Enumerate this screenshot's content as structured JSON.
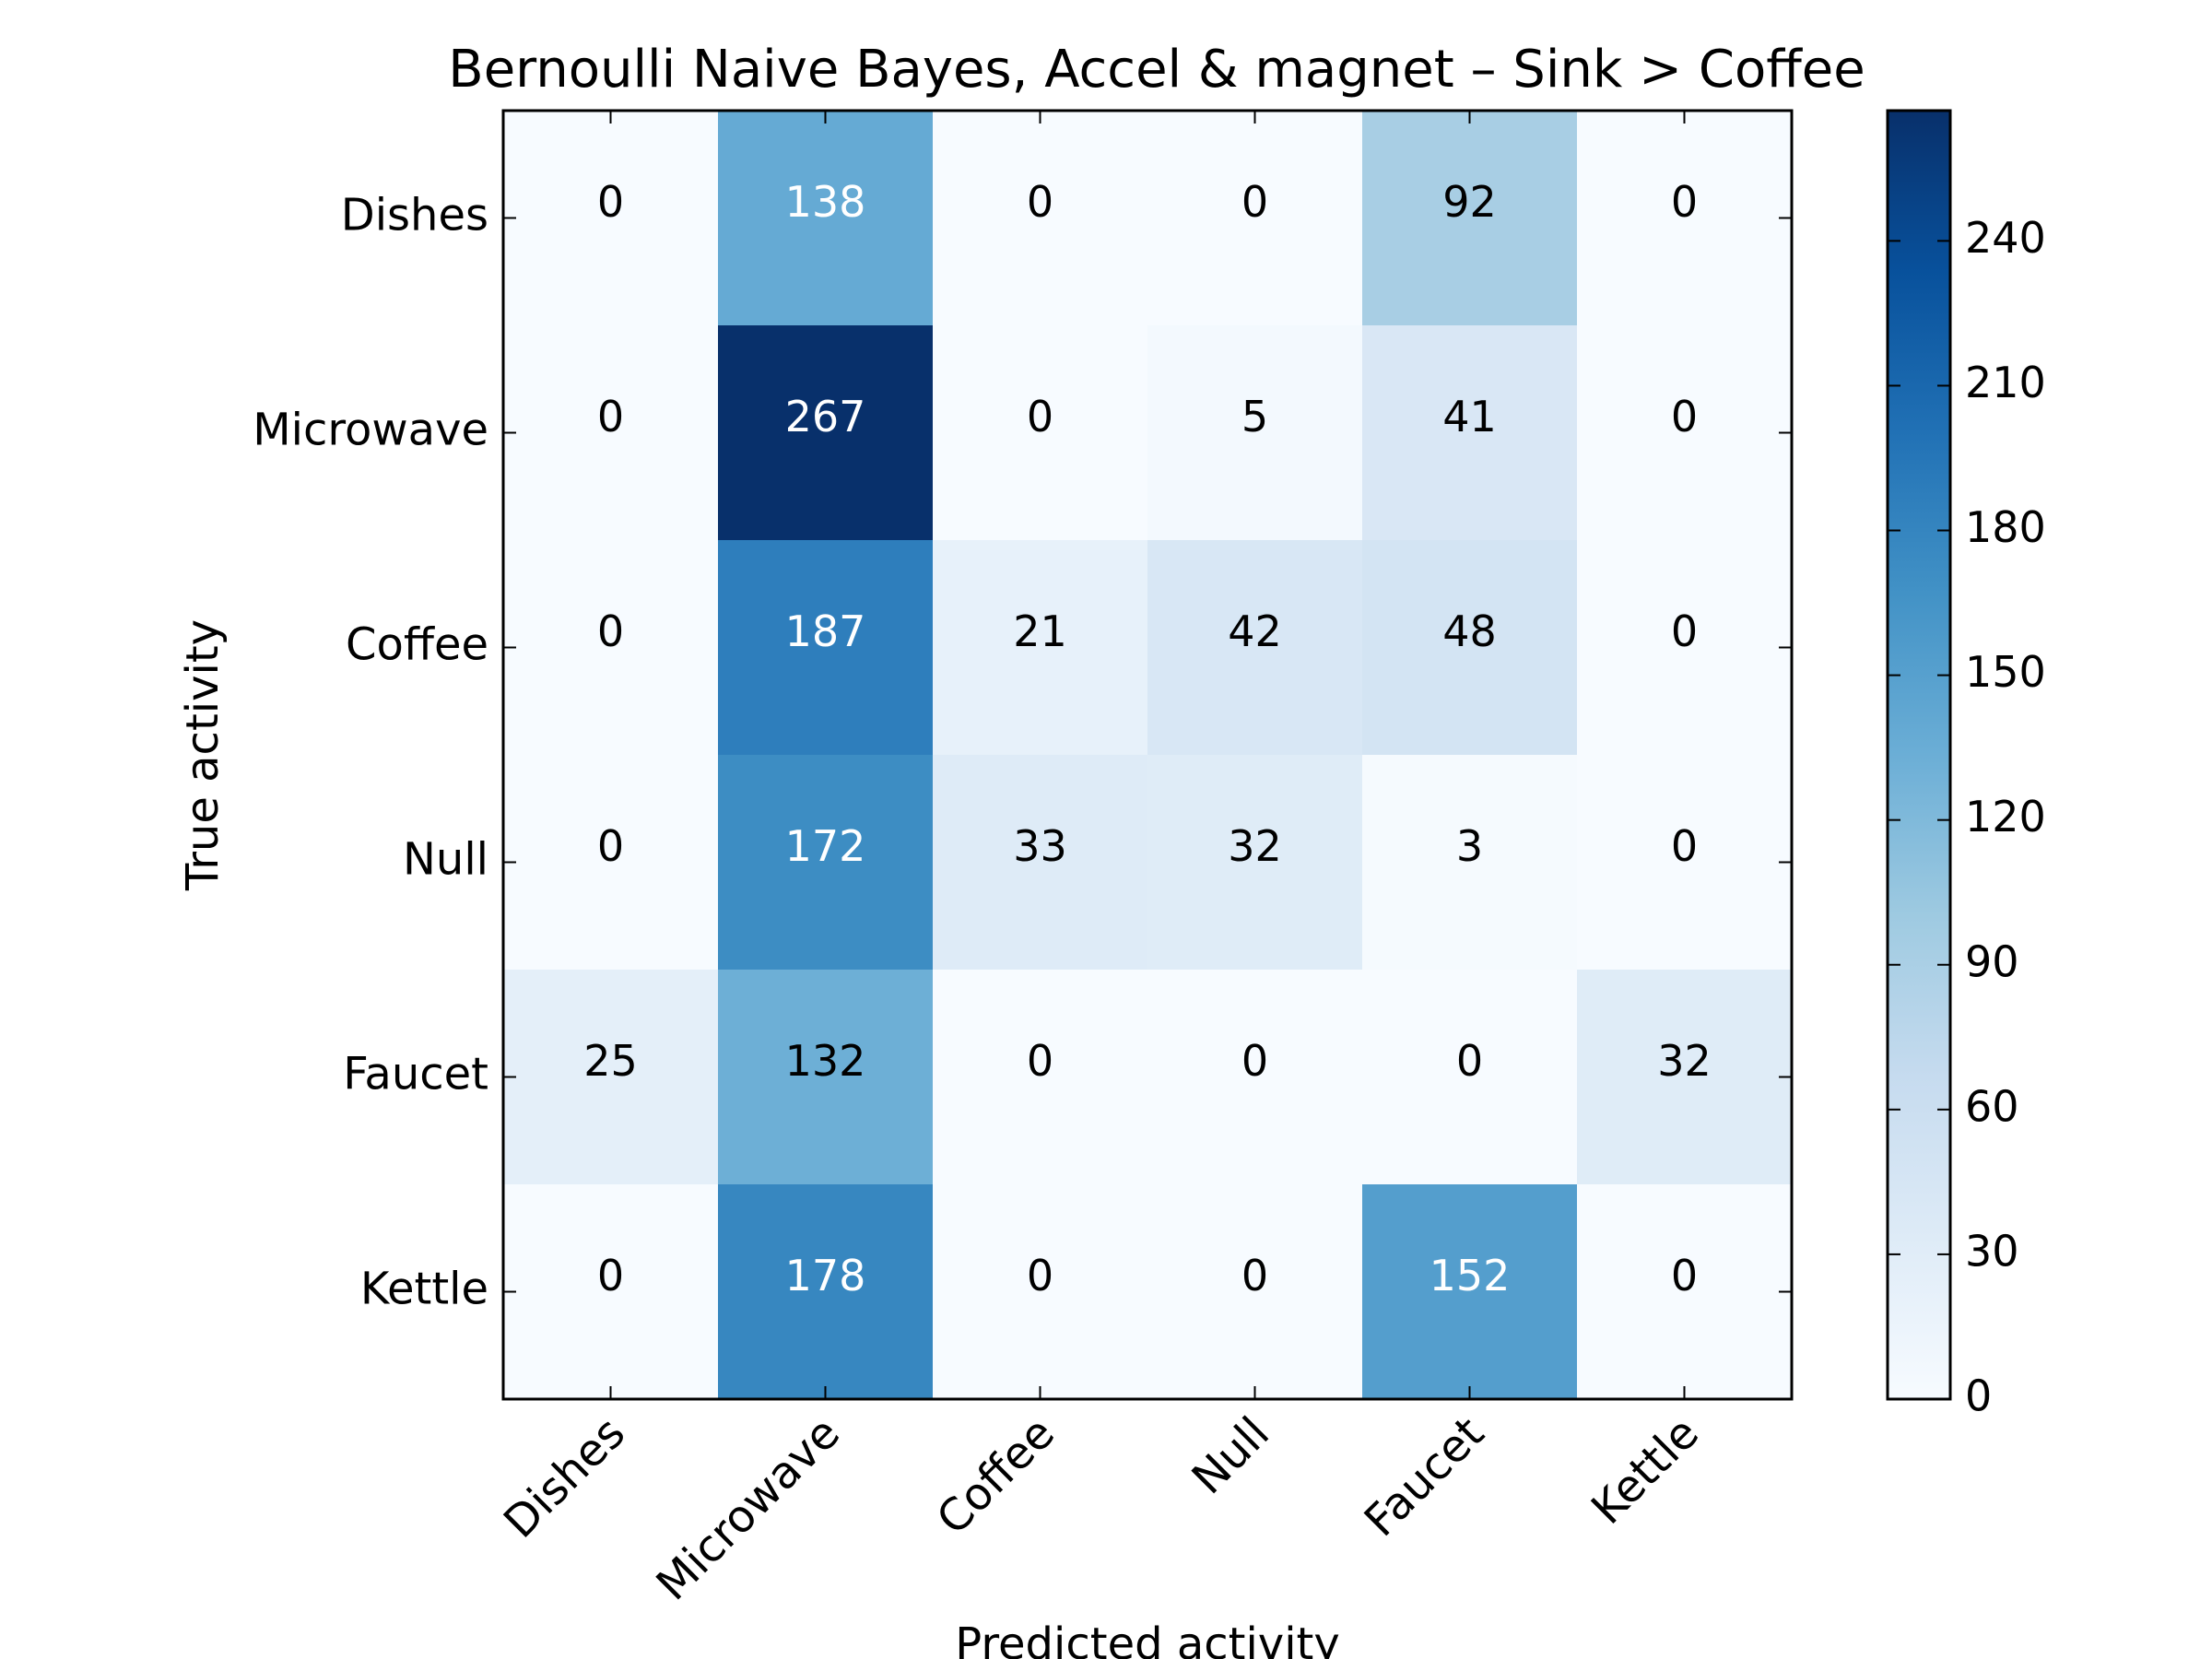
{
  "chart_data": {
    "type": "heatmap",
    "title": "Bernoulli Naive Bayes, Accel & magnet – Sink > Coffee",
    "xlabel": "Predicted activity",
    "ylabel": "True activity",
    "x_categories": [
      "Dishes",
      "Microwave",
      "Coffee",
      "Null",
      "Faucet",
      "Kettle"
    ],
    "y_categories": [
      "Dishes",
      "Microwave",
      "Coffee",
      "Null",
      "Faucet",
      "Kettle"
    ],
    "values": [
      [
        0,
        138,
        0,
        0,
        92,
        0
      ],
      [
        0,
        267,
        0,
        5,
        41,
        0
      ],
      [
        0,
        187,
        21,
        42,
        48,
        0
      ],
      [
        0,
        172,
        33,
        32,
        3,
        0
      ],
      [
        25,
        132,
        0,
        0,
        0,
        32
      ],
      [
        0,
        178,
        0,
        0,
        152,
        0
      ]
    ],
    "colormap": "Blues",
    "colorbar": {
      "range": [
        0,
        267
      ],
      "ticks": [
        0,
        30,
        60,
        90,
        120,
        150,
        180,
        210,
        240
      ]
    },
    "grid": false
  }
}
